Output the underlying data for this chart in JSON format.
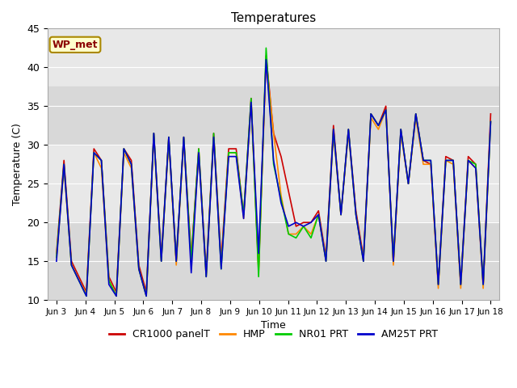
{
  "title": "Temperatures",
  "xlabel": "Time",
  "ylabel": "Temperature (C)",
  "ylim": [
    10,
    45
  ],
  "background_color": "#ffffff",
  "plot_bg_color": "#e8e8e8",
  "shaded_band_upper": [
    30,
    37.5
  ],
  "shaded_band_lower": [
    10,
    20
  ],
  "shaded_color_upper": "#d8d8d8",
  "shaded_color_lower": "#d8d8d8",
  "annotation_text": "WP_met",
  "xtick_labels": [
    "Jun 3",
    "Jun 4",
    "Jun 5",
    "Jun 6",
    "Jun 7",
    "Jun 8",
    "Jun 9",
    "Jun 10",
    "Jun 11",
    "Jun 12",
    "Jun 13",
    "Jun 14",
    "Jun 15",
    "Jun 16",
    "Jun 17",
    "Jun 18"
  ],
  "series": {
    "CR1000 panelT": {
      "color": "#cc0000",
      "linewidth": 1.2,
      "values": [
        16,
        28,
        15,
        13,
        11,
        29.5,
        28,
        13,
        11,
        29.5,
        28,
        14.5,
        11,
        31.5,
        15.5,
        31,
        15,
        31,
        15.5,
        29.5,
        13.5,
        31.5,
        15,
        29.5,
        29.5,
        21,
        36,
        14,
        41.5,
        31.5,
        28.5,
        24,
        19.5,
        20,
        20,
        21.5,
        15.5,
        32.5,
        21,
        32,
        21.5,
        15.5,
        34,
        32.5,
        35,
        14.8,
        32,
        25,
        34,
        28,
        27.5,
        12,
        28.5,
        28,
        12,
        28.5,
        27.5,
        12,
        34
      ]
    },
    "HMP": {
      "color": "#ff8800",
      "linewidth": 1.2,
      "values": [
        15.5,
        27,
        14.5,
        12.5,
        10.8,
        29,
        27,
        12.5,
        10.5,
        29,
        27,
        14,
        10.5,
        31,
        15,
        30.5,
        14.5,
        30.5,
        15,
        29,
        13,
        31,
        14.5,
        29,
        29,
        20.5,
        35.5,
        13.5,
        41,
        31.5,
        23.5,
        18.5,
        18.5,
        19.5,
        18.5,
        21,
        15,
        31.5,
        21,
        31.5,
        21,
        15,
        33.5,
        32,
        34.5,
        14.5,
        31.5,
        25,
        33.5,
        27.5,
        27.5,
        11.5,
        28,
        27.5,
        11.5,
        28,
        27,
        11.5,
        33
      ]
    },
    "NR01 PRT": {
      "color": "#00cc00",
      "linewidth": 1.2,
      "values": [
        15.5,
        27.5,
        14.5,
        12.5,
        10.5,
        29,
        28,
        12.5,
        10.5,
        29.5,
        27.5,
        14,
        10.5,
        31.5,
        15,
        31,
        15,
        31,
        15,
        29.5,
        13,
        31.5,
        14,
        29,
        29,
        21,
        36,
        13,
        42.5,
        27.5,
        23,
        18.5,
        18,
        19.5,
        18,
        21,
        15,
        32,
        21,
        32,
        21,
        15,
        34,
        32.5,
        34.5,
        15,
        32,
        25,
        34,
        28,
        28,
        12,
        28,
        28,
        12,
        28,
        27.5,
        12,
        33
      ]
    },
    "AM25T PRT": {
      "color": "#0000cc",
      "linewidth": 1.2,
      "values": [
        15,
        27.5,
        14.5,
        12.5,
        10.5,
        29,
        28,
        12,
        10.5,
        29.5,
        27.5,
        14,
        10.5,
        31.5,
        15,
        31,
        15,
        31,
        13.5,
        29,
        13,
        31,
        14,
        28.5,
        28.5,
        20.5,
        35.5,
        16,
        41,
        28,
        22.5,
        19.5,
        20,
        19.5,
        20,
        21,
        15,
        32,
        21,
        32,
        21,
        15,
        34,
        32.5,
        34.5,
        15,
        32,
        25,
        34,
        28,
        28,
        12,
        28,
        28,
        12,
        28,
        27,
        12,
        33
      ]
    }
  }
}
